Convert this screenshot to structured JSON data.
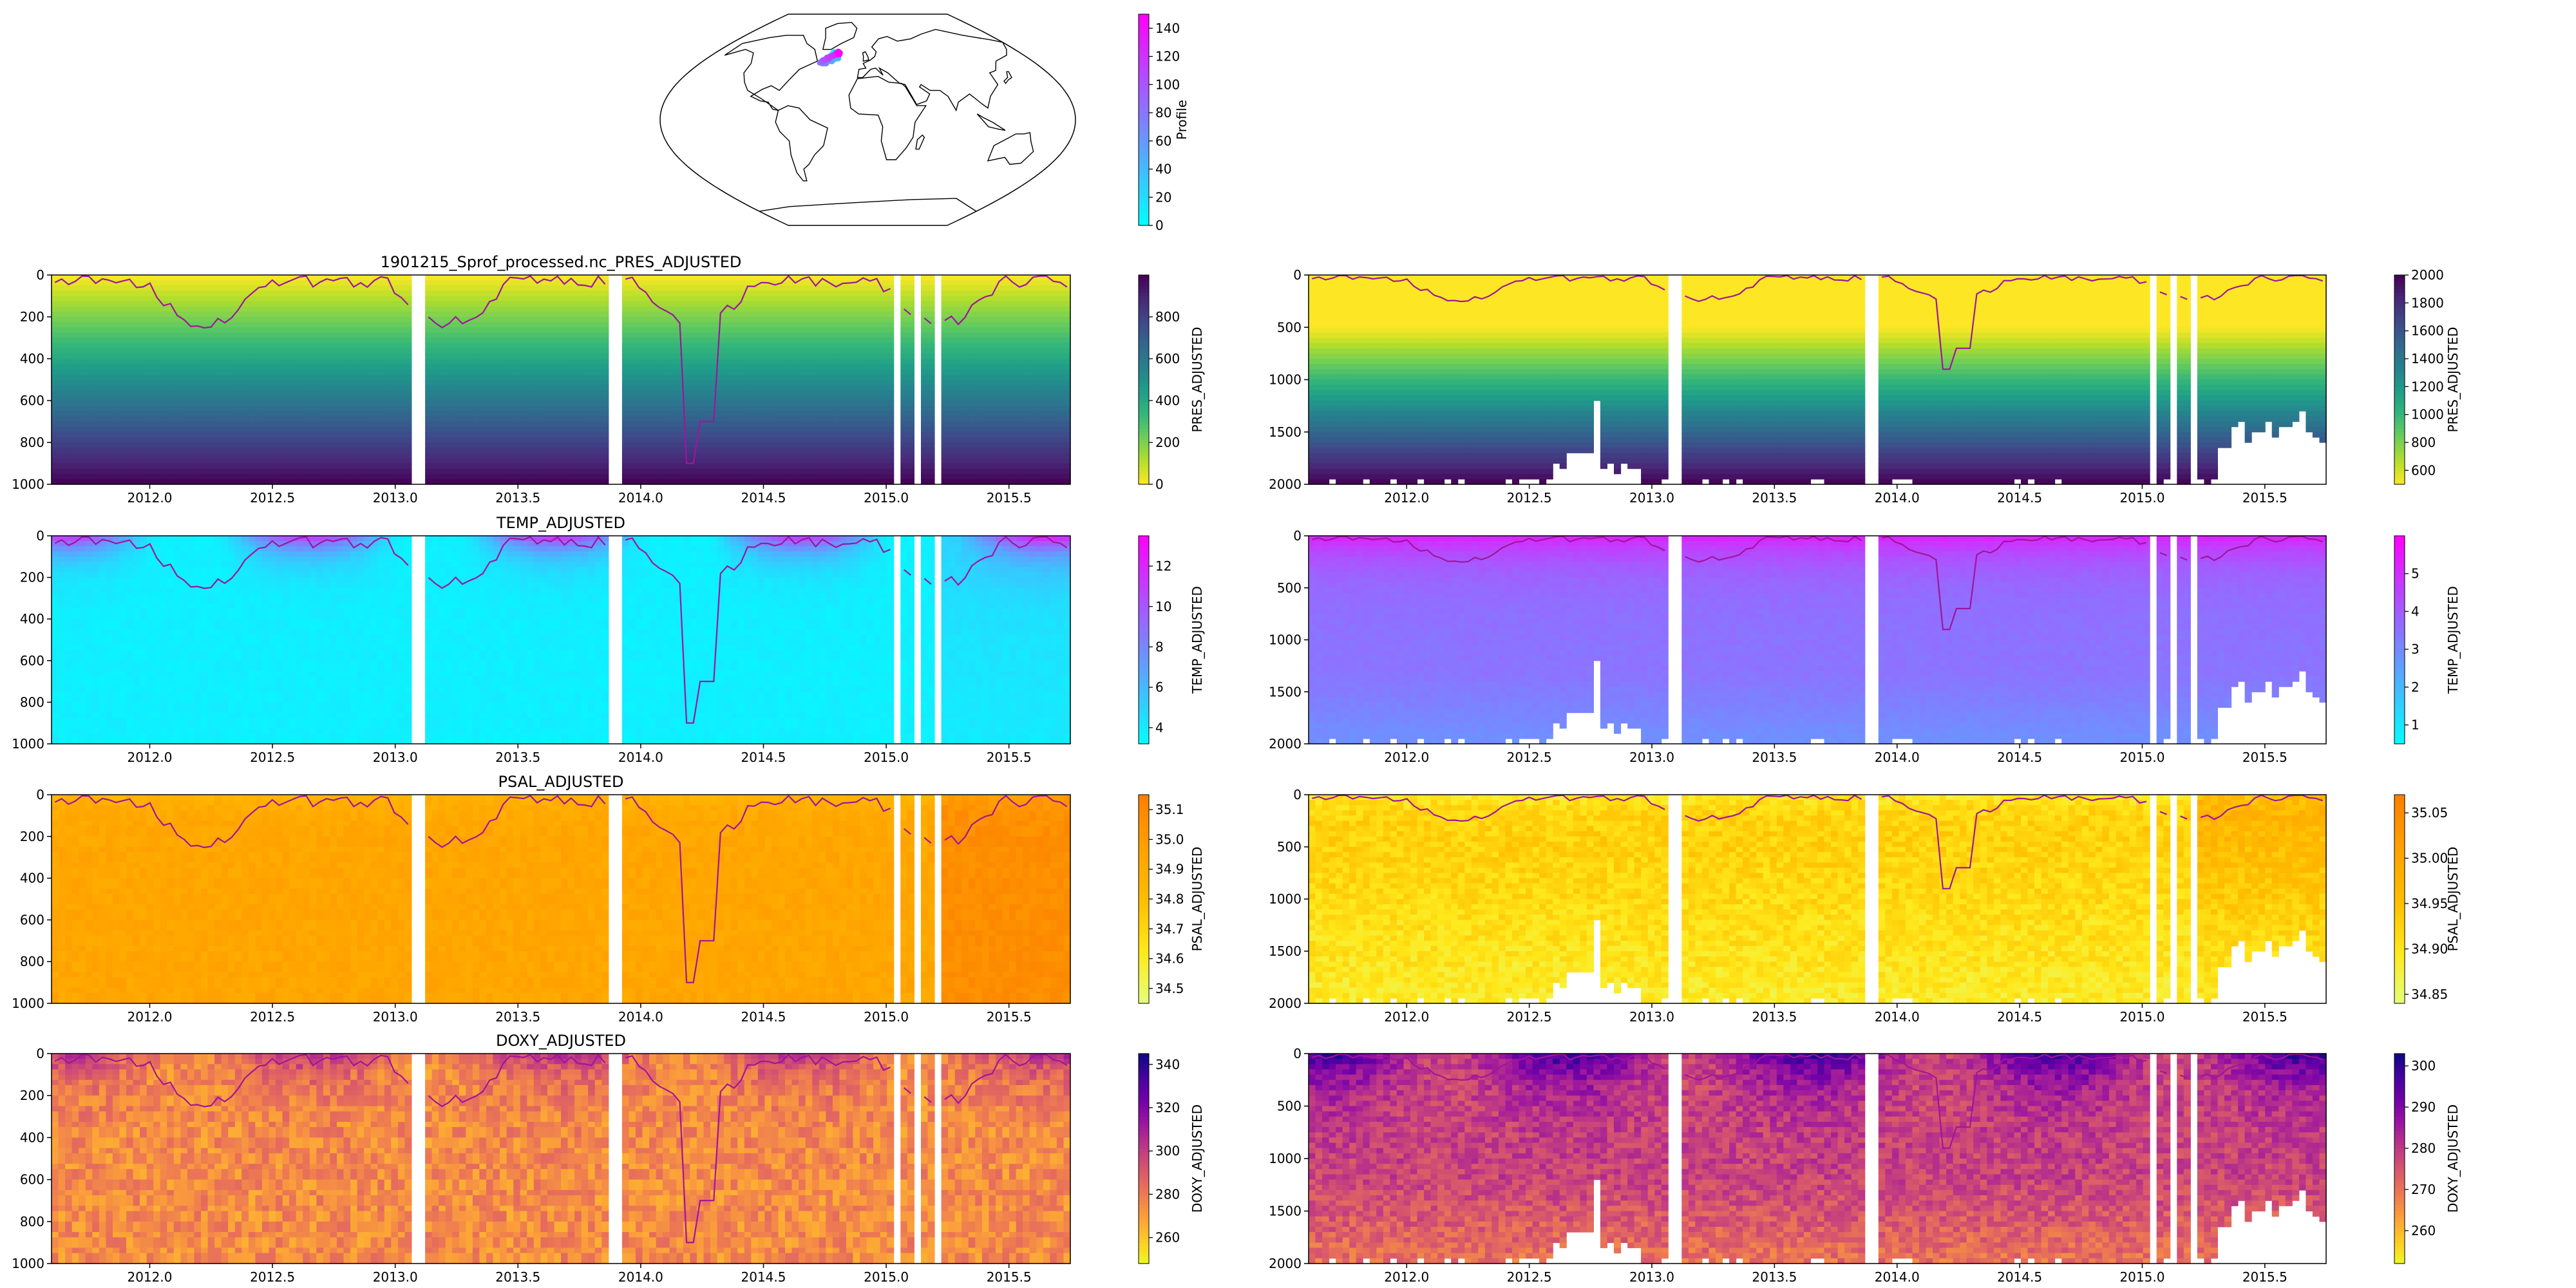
{
  "figure": {
    "map": {
      "colorbar_label": "Profile",
      "colorbar_ticks": [
        "0",
        "20",
        "40",
        "60",
        "80",
        "100",
        "120",
        "140"
      ],
      "colormap": "cool",
      "track_profile_range": [
        0,
        150
      ],
      "track_location": "North Atlantic, south of Greenland"
    }
  },
  "chart_data": [
    {
      "type": "heatmap",
      "panel": "left-row-1",
      "title": "1901215_Sprof_processed.nc_PRES_ADJUSTED",
      "variable": "PRES_ADJUSTED",
      "colormap": "viridis_r",
      "x": {
        "range": [
          2011.6,
          2015.75
        ],
        "tick_labels": [
          "2012.0",
          "2012.5",
          "2013.0",
          "2013.5",
          "2014.0",
          "2014.5",
          "2015.0",
          "2015.5"
        ]
      },
      "y": {
        "range": [
          1000,
          0
        ],
        "inverted": true,
        "tick_labels": [
          "0",
          "200",
          "400",
          "600",
          "800",
          "1000"
        ]
      },
      "colorbar": {
        "range": [
          0,
          1000
        ],
        "tick_labels": [
          "0",
          "200",
          "400",
          "600",
          "800"
        ]
      },
      "overlay_line_color": "#a0159b"
    },
    {
      "type": "heatmap",
      "panel": "right-row-1",
      "variable": "PRES_ADJUSTED",
      "colormap": "viridis_r",
      "x": {
        "range": [
          2011.6,
          2015.75
        ],
        "tick_labels": [
          "2012.0",
          "2012.5",
          "2013.0",
          "2013.5",
          "2014.0",
          "2014.5",
          "2015.0",
          "2015.5"
        ]
      },
      "y": {
        "range": [
          2000,
          0
        ],
        "inverted": true,
        "tick_labels": [
          "0",
          "500",
          "1000",
          "1500",
          "2000"
        ]
      },
      "colorbar": {
        "range": [
          500,
          2000
        ],
        "tick_labels": [
          "600",
          "800",
          "1000",
          "1200",
          "1400",
          "1600",
          "1800",
          "2000"
        ]
      },
      "overlay_line_color": "#a0159b"
    },
    {
      "type": "heatmap",
      "panel": "left-row-2",
      "title": "TEMP_ADJUSTED",
      "variable": "TEMP_ADJUSTED",
      "colormap": "cool",
      "x": {
        "range": [
          2011.6,
          2015.75
        ],
        "tick_labels": [
          "2012.0",
          "2012.5",
          "2013.0",
          "2013.5",
          "2014.0",
          "2014.5",
          "2015.0",
          "2015.5"
        ]
      },
      "y": {
        "range": [
          1000,
          0
        ],
        "inverted": true,
        "tick_labels": [
          "0",
          "200",
          "400",
          "600",
          "800",
          "1000"
        ]
      },
      "colorbar": {
        "range": [
          3.2,
          13.5
        ],
        "tick_labels": [
          "4",
          "6",
          "8",
          "10",
          "12"
        ]
      },
      "overlay_line_color": "#a0159b"
    },
    {
      "type": "heatmap",
      "panel": "right-row-2",
      "variable": "TEMP_ADJUSTED",
      "colormap": "cool",
      "x": {
        "range": [
          2011.6,
          2015.75
        ],
        "tick_labels": [
          "2012.0",
          "2012.5",
          "2013.0",
          "2013.5",
          "2014.0",
          "2014.5",
          "2015.0",
          "2015.5"
        ]
      },
      "y": {
        "range": [
          2000,
          0
        ],
        "inverted": true,
        "tick_labels": [
          "0",
          "500",
          "1000",
          "1500",
          "2000"
        ]
      },
      "colorbar": {
        "range": [
          0.5,
          6
        ],
        "tick_labels": [
          "1",
          "2",
          "3",
          "4",
          "5"
        ]
      },
      "overlay_line_color": "#a0159b"
    },
    {
      "type": "heatmap",
      "panel": "left-row-3",
      "title": "PSAL_ADJUSTED",
      "variable": "PSAL_ADJUSTED",
      "colormap": "Wistia",
      "x": {
        "range": [
          2011.6,
          2015.75
        ],
        "tick_labels": [
          "2012.0",
          "2012.5",
          "2013.0",
          "2013.5",
          "2014.0",
          "2014.5",
          "2015.0",
          "2015.5"
        ]
      },
      "y": {
        "range": [
          1000,
          0
        ],
        "inverted": true,
        "tick_labels": [
          "0",
          "200",
          "400",
          "600",
          "800",
          "1000"
        ]
      },
      "colorbar": {
        "range": [
          34.45,
          35.15
        ],
        "tick_labels": [
          "34.5",
          "34.6",
          "34.7",
          "34.8",
          "34.9",
          "35.0",
          "35.1"
        ]
      },
      "overlay_line_color": "#a0159b"
    },
    {
      "type": "heatmap",
      "panel": "right-row-3",
      "variable": "PSAL_ADJUSTED",
      "colormap": "Wistia",
      "x": {
        "range": [
          2011.6,
          2015.75
        ],
        "tick_labels": [
          "2012.0",
          "2012.5",
          "2013.0",
          "2013.5",
          "2014.0",
          "2014.5",
          "2015.0",
          "2015.5"
        ]
      },
      "y": {
        "range": [
          2000,
          0
        ],
        "inverted": true,
        "tick_labels": [
          "0",
          "500",
          "1000",
          "1500",
          "2000"
        ]
      },
      "colorbar": {
        "range": [
          34.84,
          35.07
        ],
        "tick_labels": [
          "34.85",
          "34.90",
          "34.95",
          "35.00",
          "35.05"
        ]
      },
      "overlay_line_color": "#a0159b"
    },
    {
      "type": "heatmap",
      "panel": "left-row-4",
      "title": "DOXY_ADJUSTED",
      "variable": "DOXY_ADJUSTED",
      "colormap": "plasma_r",
      "x": {
        "range": [
          2011.6,
          2015.75
        ],
        "tick_labels": [
          "2012.0",
          "2012.5",
          "2013.0",
          "2013.5",
          "2014.0",
          "2014.5",
          "2015.0",
          "2015.5"
        ]
      },
      "y": {
        "range": [
          1000,
          0
        ],
        "inverted": true,
        "tick_labels": [
          "0",
          "200",
          "400",
          "600",
          "800",
          "1000"
        ]
      },
      "colorbar": {
        "range": [
          248,
          345
        ],
        "tick_labels": [
          "260",
          "280",
          "300",
          "320",
          "340"
        ]
      },
      "overlay_line_color": "#a0159b"
    },
    {
      "type": "heatmap",
      "panel": "right-row-4",
      "variable": "DOXY_ADJUSTED",
      "colormap": "plasma_r",
      "x": {
        "range": [
          2011.6,
          2015.75
        ],
        "tick_labels": [
          "2012.0",
          "2012.5",
          "2013.0",
          "2013.5",
          "2014.0",
          "2014.5",
          "2015.0",
          "2015.5"
        ]
      },
      "y": {
        "range": [
          2000,
          0
        ],
        "inverted": true,
        "tick_labels": [
          "0",
          "500",
          "1000",
          "1500",
          "2000"
        ]
      },
      "colorbar": {
        "range": [
          252,
          303
        ],
        "tick_labels": [
          "260",
          "270",
          "280",
          "290",
          "300"
        ]
      },
      "overlay_line_color": "#a0159b"
    }
  ]
}
